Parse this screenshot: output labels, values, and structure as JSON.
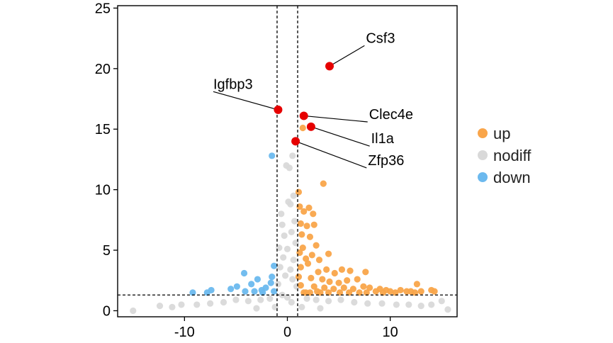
{
  "chart_data": {
    "type": "scatter",
    "title": "",
    "xlabel": "",
    "ylabel": "",
    "xlim": [
      -16.5,
      16.5
    ],
    "ylim": [
      -0.5,
      25.2
    ],
    "x_ticks": [
      -10,
      0,
      10
    ],
    "x_tick_labels": [
      "-10",
      "0",
      "10"
    ],
    "y_ticks": [
      0,
      5,
      10,
      15,
      20,
      25
    ],
    "y_tick_labels": [
      "0",
      "5",
      "10",
      "15",
      "20",
      "25"
    ],
    "grid": false,
    "legend_position": "right",
    "thresholds": {
      "vertical": [
        -1,
        1
      ],
      "horizontal": 1.3
    },
    "colors": {
      "up": "#f9a54a",
      "nodiff": "#d9d9d9",
      "down": "#6cb9ee",
      "highlight": "#e60000"
    },
    "series": [
      {
        "name": "up",
        "points": [
          [
            1.5,
            15.1
          ],
          [
            3.5,
            10.5
          ],
          [
            1.1,
            9.8
          ],
          [
            1.2,
            8.6
          ],
          [
            1.6,
            8.2
          ],
          [
            2.1,
            8.5
          ],
          [
            1.3,
            7.2
          ],
          [
            1.9,
            7.0
          ],
          [
            2.5,
            8.0
          ],
          [
            2.6,
            7.1
          ],
          [
            1.4,
            6.3
          ],
          [
            2.2,
            6.1
          ],
          [
            1.5,
            5.2
          ],
          [
            2.8,
            5.4
          ],
          [
            1.2,
            4.8
          ],
          [
            1.8,
            4.3
          ],
          [
            2.4,
            4.6
          ],
          [
            3.1,
            4.2
          ],
          [
            4.0,
            4.7
          ],
          [
            1.3,
            3.6
          ],
          [
            2.0,
            3.9
          ],
          [
            3.0,
            3.2
          ],
          [
            3.8,
            3.4
          ],
          [
            4.6,
            3.1
          ],
          [
            5.3,
            3.4
          ],
          [
            6.1,
            3.3
          ],
          [
            7.6,
            3.2
          ],
          [
            1.1,
            2.8
          ],
          [
            2.3,
            2.7
          ],
          [
            3.4,
            2.6
          ],
          [
            4.1,
            2.4
          ],
          [
            5.0,
            2.3
          ],
          [
            5.8,
            2.5
          ],
          [
            6.8,
            2.6
          ],
          [
            7.4,
            2.0
          ],
          [
            8.0,
            1.9
          ],
          [
            9.0,
            1.8
          ],
          [
            12.6,
            2.2
          ],
          [
            1.3,
            2.1
          ],
          [
            2.6,
            2.0
          ],
          [
            3.6,
            1.9
          ],
          [
            4.5,
            1.8
          ],
          [
            5.5,
            1.9
          ],
          [
            6.4,
            1.8
          ],
          [
            8.6,
            1.6
          ],
          [
            9.6,
            1.7
          ],
          [
            10.0,
            1.6
          ],
          [
            11.0,
            1.7
          ],
          [
            11.6,
            1.6
          ],
          [
            12.0,
            1.6
          ],
          [
            13.0,
            1.6
          ],
          [
            14.0,
            1.7
          ],
          [
            1.8,
            1.5
          ],
          [
            2.9,
            1.6
          ],
          [
            4.0,
            1.5
          ],
          [
            6.0,
            1.5
          ],
          [
            7.0,
            1.5
          ],
          [
            7.7,
            1.5
          ],
          [
            9.3,
            1.5
          ],
          [
            10.5,
            1.5
          ],
          [
            12.4,
            1.5
          ],
          [
            14.3,
            1.6
          ],
          [
            1.6,
            1.5
          ],
          [
            2.2,
            1.5
          ],
          [
            3.2,
            1.5
          ],
          [
            5.1,
            1.5
          ]
        ]
      },
      {
        "name": "nodiff",
        "points": [
          [
            -0.6,
            8.0
          ],
          [
            0.3,
            8.8
          ],
          [
            0.6,
            9.5
          ],
          [
            0.2,
            11.8
          ],
          [
            0.5,
            12.8
          ],
          [
            -0.1,
            12.0
          ],
          [
            0.1,
            9.0
          ],
          [
            -0.5,
            7.1
          ],
          [
            0.7,
            7.4
          ],
          [
            -0.3,
            6.2
          ],
          [
            0.4,
            6.5
          ],
          [
            -0.8,
            5.2
          ],
          [
            0.8,
            5.6
          ],
          [
            0.0,
            5.1
          ],
          [
            -0.4,
            4.4
          ],
          [
            0.6,
            4.2
          ],
          [
            -0.7,
            3.6
          ],
          [
            0.3,
            3.4
          ],
          [
            -0.2,
            2.9
          ],
          [
            0.5,
            2.6
          ],
          [
            -0.9,
            2.2
          ],
          [
            0.9,
            2.0
          ],
          [
            -1.7,
            1.0
          ],
          [
            -2.6,
            0.9
          ],
          [
            -3.8,
            0.8
          ],
          [
            -5.0,
            0.9
          ],
          [
            -6.2,
            0.7
          ],
          [
            -7.5,
            0.6
          ],
          [
            -8.8,
            0.5
          ],
          [
            -10.3,
            0.5
          ],
          [
            -11.2,
            0.3
          ],
          [
            -12.4,
            0.4
          ],
          [
            -15.0,
            0.0
          ],
          [
            1.9,
            1.0
          ],
          [
            2.8,
            0.9
          ],
          [
            4.0,
            0.8
          ],
          [
            5.2,
            0.9
          ],
          [
            6.5,
            0.7
          ],
          [
            7.8,
            0.6
          ],
          [
            9.2,
            0.6
          ],
          [
            10.6,
            0.5
          ],
          [
            11.8,
            0.5
          ],
          [
            13.0,
            0.4
          ],
          [
            14.0,
            0.5
          ],
          [
            15.0,
            0.8
          ],
          [
            15.6,
            0.1
          ],
          [
            -1.2,
            0.3
          ],
          [
            1.4,
            0.3
          ],
          [
            -3.0,
            0.2
          ],
          [
            3.2,
            0.2
          ],
          [
            0.0,
            1.1
          ],
          [
            -0.5,
            1.3
          ],
          [
            0.4,
            0.7
          ]
        ]
      },
      {
        "name": "down",
        "points": [
          [
            -1.5,
            12.8
          ],
          [
            -1.3,
            3.7
          ],
          [
            -4.2,
            3.1
          ],
          [
            -1.5,
            2.8
          ],
          [
            -2.9,
            2.6
          ],
          [
            -1.6,
            2.3
          ],
          [
            -3.5,
            2.2
          ],
          [
            -4.9,
            2.0
          ],
          [
            -2.1,
            1.9
          ],
          [
            -5.5,
            1.8
          ],
          [
            -2.5,
            1.7
          ],
          [
            -3.2,
            1.6
          ],
          [
            -4.1,
            1.6
          ],
          [
            -7.4,
            1.7
          ],
          [
            -9.2,
            1.5
          ],
          [
            -7.8,
            1.5
          ],
          [
            -2.4,
            1.5
          ],
          [
            -1.3,
            1.6
          ]
        ]
      }
    ],
    "highlighted": [
      {
        "label": "Csf3",
        "x": 4.1,
        "y": 20.2,
        "label_x": 7.5,
        "label_y": 21.9
      },
      {
        "label": "Igfbp3",
        "x": -0.9,
        "y": 16.6,
        "label_x": -7.2,
        "label_y": 18.1
      },
      {
        "label": "Clec4e",
        "x": 1.6,
        "y": 16.1,
        "label_x": 7.8,
        "label_y": 15.6
      },
      {
        "label": "Il1a",
        "x": 2.3,
        "y": 15.2,
        "label_x": 8.0,
        "label_y": 13.6
      },
      {
        "label": "Zfp36",
        "x": 0.8,
        "y": 14.0,
        "label_x": 7.7,
        "label_y": 11.8
      }
    ]
  }
}
